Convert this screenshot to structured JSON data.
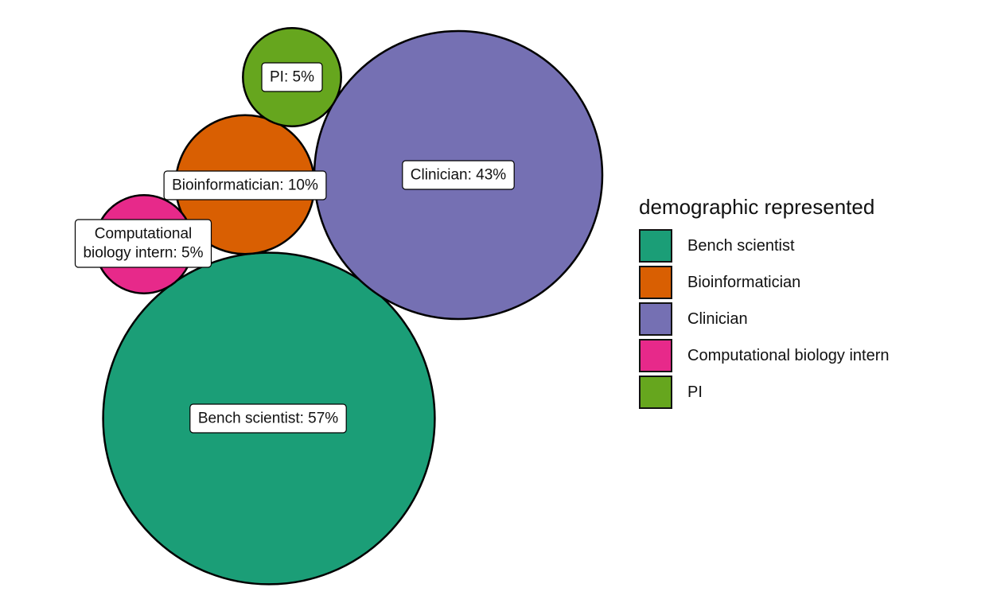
{
  "chart_data": {
    "type": "bubble",
    "legend_title": "demographic represented",
    "legend_position": "right",
    "series": [
      {
        "name": "Bench scientist",
        "percent": 57,
        "label": "Bench scientist: 57%",
        "color": "#1b9e77"
      },
      {
        "name": "Bioinformatician",
        "percent": 10,
        "label": "Bioinformatician: 10%",
        "color": "#d95f02"
      },
      {
        "name": "Clinician",
        "percent": 43,
        "label": "Clinician: 43%",
        "color": "#7570b3"
      },
      {
        "name": "Computational biology intern",
        "percent": 5,
        "label_lines": [
          "Computational",
          "biology intern: 5%"
        ],
        "color": "#e7298a"
      },
      {
        "name": "PI",
        "percent": 5,
        "label": "PI: 5%",
        "color": "#66a61e"
      }
    ]
  }
}
